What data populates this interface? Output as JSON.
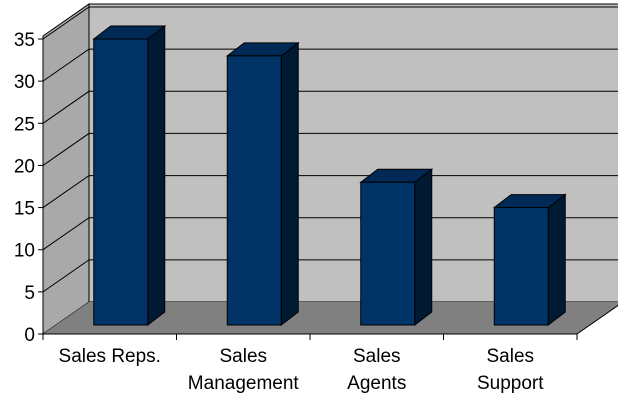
{
  "chart_data": {
    "type": "bar",
    "title": "",
    "xlabel": "",
    "ylabel": "",
    "categories": [
      [
        "Sales Reps."
      ],
      [
        "Sales",
        "Management"
      ],
      [
        "Sales",
        "Agents"
      ],
      [
        "Sales",
        "Support"
      ]
    ],
    "values": [
      35,
      33,
      18,
      15
    ],
    "ylim": [
      0,
      35
    ],
    "yticks": [
      "0",
      "5",
      "10",
      "15",
      "20",
      "25",
      "30",
      "35"
    ],
    "grid": true,
    "legend": "none",
    "colors": {
      "bar_front": "#003366",
      "bar_top": "#002a55",
      "bar_side": "#001a33",
      "back_wall": "#c0c0c0",
      "side_wall": "#a9a9a9",
      "floor": "#808080",
      "gridline": "#000000"
    }
  }
}
